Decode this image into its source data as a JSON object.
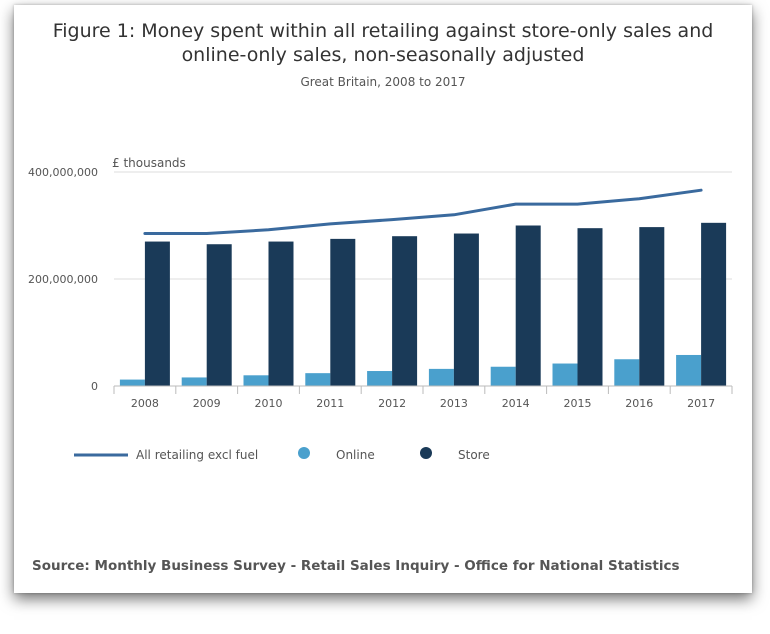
{
  "title": "Figure 1: Money spent within all retailing against store-only sales and\nonline-only sales, non-seasonally adjusted",
  "subtitle": "Great Britain, 2008 to 2017",
  "source": "Source: Monthly Business Survey - Retail Sales Inquiry - Office for National Statistics",
  "colors": {
    "line": "#3a6a9e",
    "online": "#4aa0cd",
    "store": "#1a3a58",
    "grid": "#dddddd",
    "axis": "#bbbbbb",
    "text": "#555555"
  },
  "chart_data": {
    "type": "bar",
    "ylabel": "£ thousands",
    "ylim": [
      0,
      400000000
    ],
    "yticks": [
      0,
      200000000,
      400000000
    ],
    "ytick_labels": [
      "0",
      "200,000,000",
      "400,000,000"
    ],
    "categories": [
      "2008",
      "2009",
      "2010",
      "2011",
      "2012",
      "2013",
      "2014",
      "2015",
      "2016",
      "2017"
    ],
    "series": [
      {
        "name": "Online",
        "kind": "bar",
        "values": [
          12000000,
          16000000,
          20000000,
          24000000,
          28000000,
          32000000,
          36000000,
          42000000,
          50000000,
          58000000
        ]
      },
      {
        "name": "Store",
        "kind": "bar",
        "values": [
          270000000,
          265000000,
          270000000,
          275000000,
          280000000,
          285000000,
          300000000,
          295000000,
          297000000,
          305000000
        ]
      },
      {
        "name": "All retailing excl fuel",
        "kind": "line",
        "values": [
          285000000,
          285000000,
          292000000,
          303000000,
          311000000,
          320000000,
          340000000,
          340000000,
          350000000,
          366000000
        ]
      }
    ],
    "legend": {
      "placement": "bottom-left",
      "items": [
        {
          "label": "All retailing excl fuel",
          "symbol": "line"
        },
        {
          "label": "Online",
          "symbol": "dot"
        },
        {
          "label": "Store",
          "symbol": "dot"
        }
      ]
    },
    "grid": true
  }
}
